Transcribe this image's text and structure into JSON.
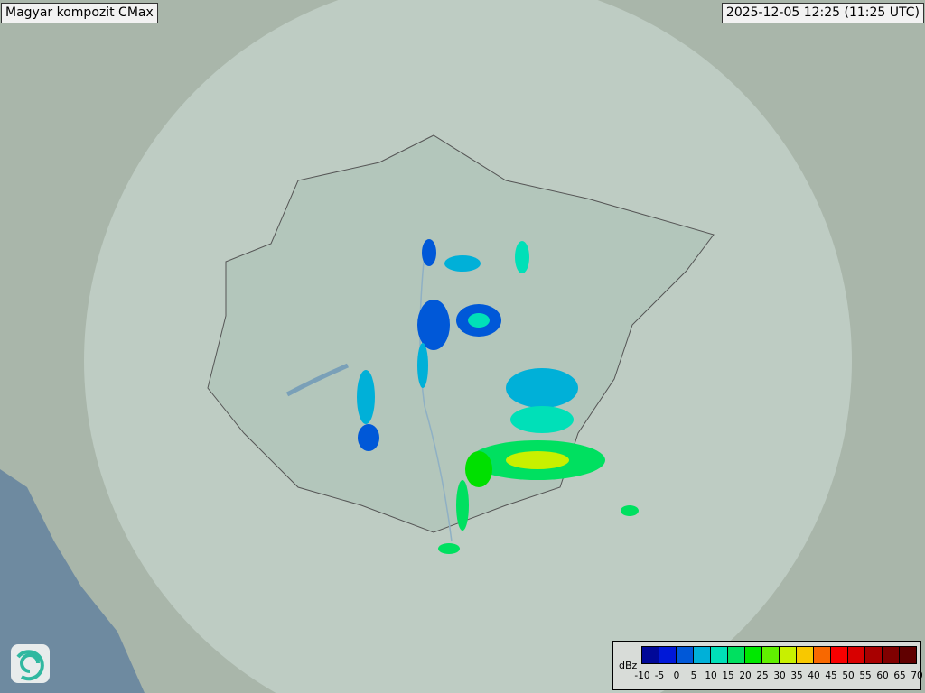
{
  "header": {
    "product_title": "Magyar kompozit  CMax",
    "timestamp": "2025-12-05 12:25 (11:25 UTC)"
  },
  "legend": {
    "unit": "dBz",
    "ticks": [
      "-10",
      "-5",
      "0",
      "5",
      "10",
      "15",
      "20",
      "25",
      "30",
      "35",
      "40",
      "45",
      "50",
      "55",
      "60",
      "65",
      "70"
    ],
    "colors": [
      "#000898",
      "#0018d8",
      "#0058d8",
      "#00b0d8",
      "#00e0b8",
      "#00e060",
      "#00e800",
      "#60f000",
      "#c8f000",
      "#f8c800",
      "#f86800",
      "#f80000",
      "#d80000",
      "#a80000",
      "#800000",
      "#600000"
    ]
  },
  "map": {
    "background": "#a7b7ad",
    "radar_coverage": "#c4d2cb",
    "logo_icon": "swirl-logo-icon"
  }
}
